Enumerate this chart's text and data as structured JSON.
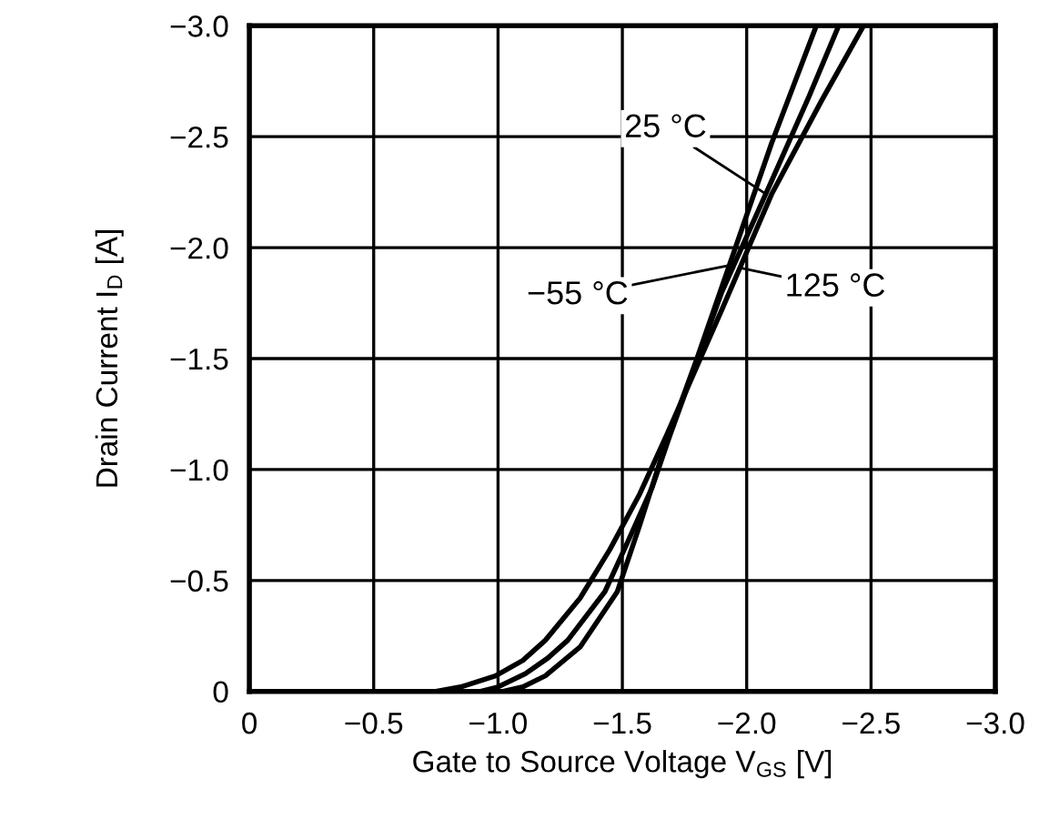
{
  "chart_data": {
    "type": "line",
    "xlabel": "Gate to Source Voltage V$_{GS}$ [V]",
    "ylabel": "Drain Current I$_{D}$ [A]",
    "series": [
      {
        "color": "#000000",
        "x": [
          -0.75,
          -0.85,
          -0.99,
          -1.1,
          -1.19,
          -1.33,
          -1.45,
          -1.57,
          -1.68,
          -1.9,
          -2.1,
          -2.3,
          -2.47
        ],
        "values": [
          0,
          -0.02,
          -0.07,
          -0.14,
          -0.23,
          -0.42,
          -0.64,
          -0.89,
          -1.16,
          -1.72,
          -2.24,
          -2.66,
          -3.0
        ]
      },
      {
        "color": "#000000",
        "x": [
          -0.93,
          -1.0,
          -1.11,
          -1.2,
          -1.28,
          -1.43,
          -1.52,
          -1.62,
          -1.69,
          -1.9,
          -2.1,
          -2.25,
          -2.37
        ],
        "values": [
          0,
          -0.02,
          -0.08,
          -0.15,
          -0.23,
          -0.45,
          -0.67,
          -0.92,
          -1.15,
          -1.8,
          -2.3,
          -2.68,
          -3.0
        ]
      },
      {
        "color": "#000000",
        "x": [
          -1.02,
          -1.1,
          -1.19,
          -1.33,
          -1.48,
          -1.57,
          -1.67,
          -1.8,
          -1.93,
          -2.1,
          -2.28
        ],
        "values": [
          0,
          -0.02,
          -0.07,
          -0.2,
          -0.45,
          -0.75,
          -1.1,
          -1.5,
          -1.92,
          -2.47,
          -3.0
        ]
      }
    ],
    "annotations": [
      {
        "text": "25 °C",
        "x": -2.08,
        "y": -2.24
      },
      {
        "text": "−55 °C",
        "x": -1.93,
        "y": -1.92
      },
      {
        "text": "125 °C",
        "x": -1.97,
        "y": -1.91
      }
    ],
    "xlim": [
      0,
      -3.0
    ],
    "ylim": [
      0,
      -3.0
    ],
    "xticks": [
      0,
      {
        "value": -0.5,
        "label": "−0.5"
      },
      {
        "value": -1.0,
        "label": "−1.0"
      },
      {
        "value": -1.5,
        "label": "−1.5"
      },
      {
        "value": -2.0,
        "label": "−2.0"
      },
      {
        "value": -2.5,
        "label": "−2.5"
      },
      {
        "value": -3.0,
        "label": "−3.0"
      }
    ],
    "yticks": [
      0,
      {
        "value": -0.5,
        "label": "−0.5"
      },
      {
        "value": -1.0,
        "label": "−1.0"
      },
      {
        "value": -1.5,
        "label": "−1.5"
      },
      {
        "value": -2.0,
        "label": "−2.0"
      },
      {
        "value": -2.5,
        "label": "−2.5"
      },
      {
        "value": -3.0,
        "label": "−3.0"
      }
    ],
    "grid": true,
    "marker": "none",
    "line_style": "solid"
  }
}
